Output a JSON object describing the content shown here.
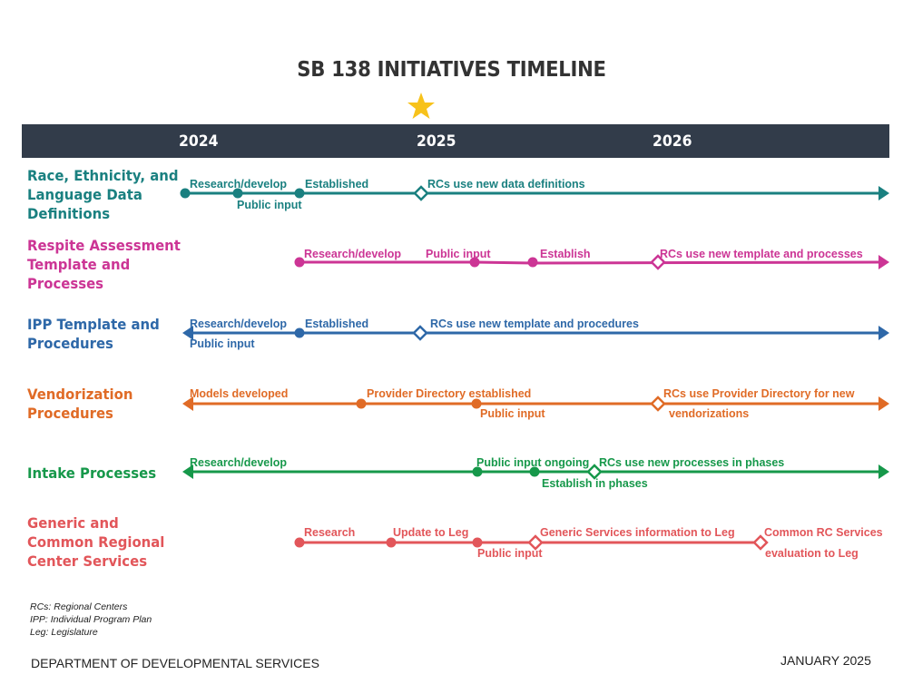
{
  "title": "SB 138 INITIATIVES TIMELINE",
  "years": [
    "2024",
    "2025",
    "2026"
  ],
  "star_color": "#f7c21b",
  "header_color": "#323c4a",
  "rows": [
    {
      "label": [
        "Race, Ethnicity, and",
        "Language Data",
        "Definitions"
      ],
      "color": "#1a8080",
      "milestones": [
        {
          "label": "Research/develop",
          "marker": "dot"
        },
        {
          "label": "Public input",
          "marker": "dot"
        },
        {
          "label": "Established",
          "marker": "dot"
        },
        {
          "label": "RCs use new data definitions",
          "marker": "diamond"
        }
      ]
    },
    {
      "label": [
        "Respite Assessment",
        "Template and",
        "Processes"
      ],
      "color": "#cc3595",
      "milestones": [
        {
          "label": "Research/develop",
          "marker": "dot"
        },
        {
          "label": "Public input",
          "marker": "dot"
        },
        {
          "label": "Establish",
          "marker": "dot"
        },
        {
          "label": "RCs use new template and processes",
          "marker": "diamond"
        }
      ]
    },
    {
      "label": [
        "IPP Template and",
        "Procedures"
      ],
      "color": "#2e68a8",
      "milestones": [
        {
          "label": "Research/develop",
          "marker": "none"
        },
        {
          "label": "Public input",
          "marker": "none"
        },
        {
          "label": "Established",
          "marker": "dot"
        },
        {
          "label": "RCs use new template and procedures",
          "marker": "diamond"
        }
      ]
    },
    {
      "label": [
        "Vendorization",
        "Procedures"
      ],
      "color": "#e06b26",
      "milestones": [
        {
          "label": "Models developed",
          "marker": "none"
        },
        {
          "label": "Provider Directory established",
          "marker": "dot"
        },
        {
          "label": "Public input",
          "marker": "dot"
        },
        {
          "label": "RCs use Provider Directory for new",
          "marker": "diamond"
        },
        {
          "label": "vendorizations",
          "marker": "none"
        }
      ]
    },
    {
      "label": [
        "Intake Processes"
      ],
      "color": "#16984a",
      "milestones": [
        {
          "label": "Research/develop",
          "marker": "none"
        },
        {
          "label": "Public input ongoing",
          "marker": "dot"
        },
        {
          "label": "Establish in phases",
          "marker": "dot"
        },
        {
          "label": "RCs use new processes in phases",
          "marker": "diamond"
        }
      ]
    },
    {
      "label": [
        "Generic and",
        "Common Regional",
        "Center Services"
      ],
      "color": "#e2565a",
      "milestones": [
        {
          "label": "Research",
          "marker": "dot"
        },
        {
          "label": "Update to Leg",
          "marker": "dot"
        },
        {
          "label": "Public input",
          "marker": "dot"
        },
        {
          "label": "Generic Services information to Leg",
          "marker": "diamond"
        },
        {
          "label": "Common RC Services",
          "marker": "diamond"
        },
        {
          "label": "evaluation to Leg",
          "marker": "none"
        }
      ]
    }
  ],
  "abbreviations": [
    "RCs: Regional Centers",
    "IPP: Individual Program Plan",
    "Leg: Legislature"
  ],
  "footer": {
    "department": "DEPARTMENT OF DEVELOPMENTAL SERVICES",
    "date": "JANUARY 2025"
  }
}
